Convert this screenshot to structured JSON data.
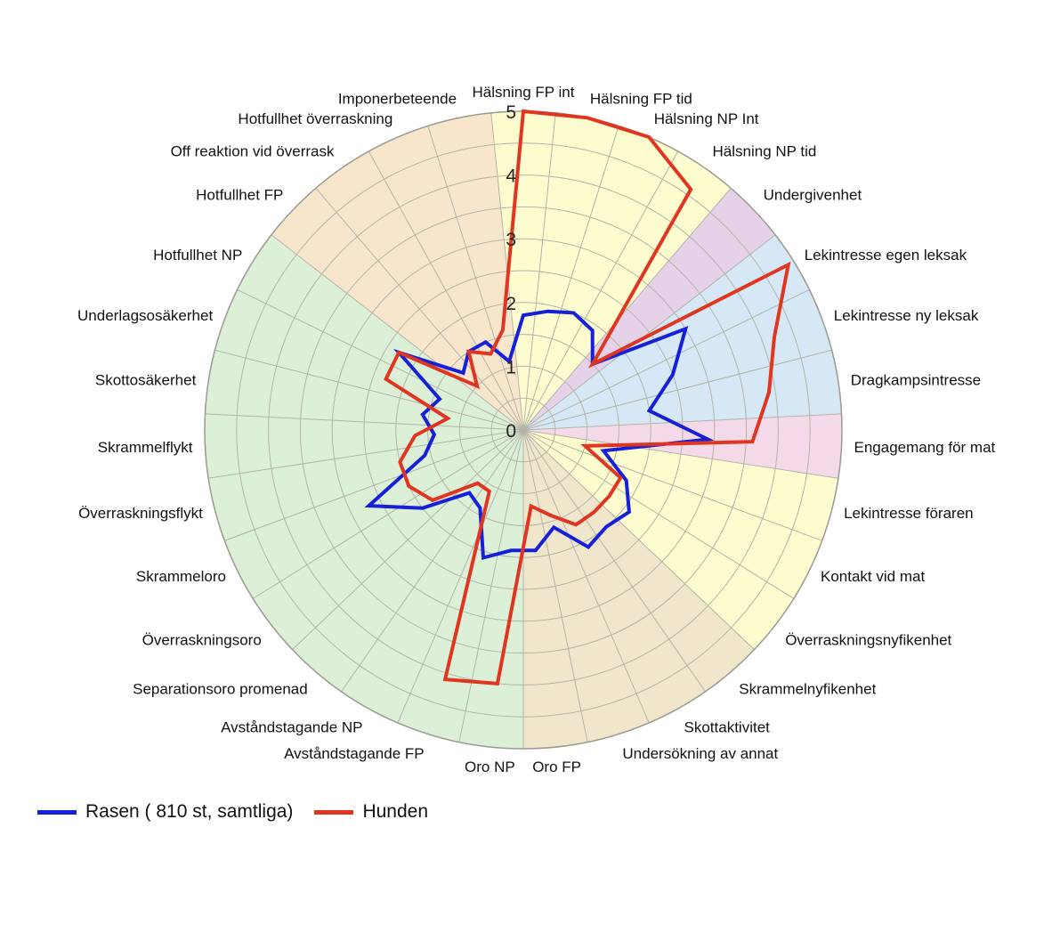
{
  "chart_data": {
    "type": "radar",
    "title": "",
    "rlim": [
      0,
      5
    ],
    "ticks": [
      "0",
      "1",
      "2",
      "3",
      "4",
      "5"
    ],
    "grid": true,
    "legend_position": "bottom-left",
    "categories": [
      "Hälsning FP int",
      "Hälsning FP tid",
      "Hälsning NP Int",
      "Hälsning NP tid",
      "Undergivenhet",
      "Lekintresse egen leksak",
      "Lekintresse ny leksak",
      "Dragkampsintresse",
      "Engagemang för mat",
      "Lekintresse föraren",
      "Kontakt vid mat",
      "Överraskningsnyfikenhet",
      "Skrammelnyfikenhet",
      "Skottaktivitet",
      "Undersökning av annat",
      "Oro FP",
      "Oro NP",
      "Avståndstagande FP",
      "Avståndstagande NP",
      "Separationsoro promenad",
      "Överraskningsoro",
      "Skrammeloro",
      "Överraskningsflykt",
      "Skrammelflykt",
      "Skottosäkerhet",
      "Underlagsosäkerhet",
      "Hotfullhet NP",
      "Hotfullhet FP",
      "Off reaktion vid överrask",
      "Hotfullhet överraskning",
      "Imponerbeteende"
    ],
    "sectors": [
      {
        "from": 0,
        "to": 4,
        "color": "#fdfcce"
      },
      {
        "from": 4,
        "to": 5,
        "color": "#e6d2e8"
      },
      {
        "from": 5,
        "to": 8,
        "color": "#d6e8f6"
      },
      {
        "from": 8,
        "to": 9,
        "color": "#f4dae8"
      },
      {
        "from": 9,
        "to": 12,
        "color": "#fdfcce"
      },
      {
        "from": 12,
        "to": 16,
        "color": "#f0e6cc"
      },
      {
        "from": 16,
        "to": 27,
        "color": "#dcf0d8"
      },
      {
        "from": 27,
        "to": 31,
        "color": "#f8e6cc"
      }
    ],
    "series": [
      {
        "name": "Rasen ( 810 st, samtliga)",
        "color": "#1520d8",
        "values": [
          1.8,
          1.9,
          2.0,
          1.9,
          1.5,
          3.0,
          2.5,
          2.0,
          2.9,
          1.3,
          1.8,
          2.1,
          2.0,
          2.1,
          1.6,
          1.9,
          1.9,
          2.1,
          1.4,
          1.3,
          2.0,
          2.7,
          1.6,
          1.4,
          1.6,
          1.4,
          2.3,
          1.3,
          1.5,
          1.5,
          1.1
        ]
      },
      {
        "name": "Hunden",
        "color": "#e03520",
        "values": [
          5.0,
          5.0,
          5.0,
          4.6,
          1.5,
          4.9,
          4.2,
          3.9,
          3.6,
          1.0,
          1.7,
          1.7,
          1.7,
          1.7,
          1.4,
          1.2,
          4.0,
          4.1,
          1.1,
          1.1,
          1.8,
          2.0,
          2.0,
          1.7,
          1.2,
          2.3,
          2.3,
          1.0,
          1.5,
          1.3,
          1.6
        ]
      }
    ]
  }
}
